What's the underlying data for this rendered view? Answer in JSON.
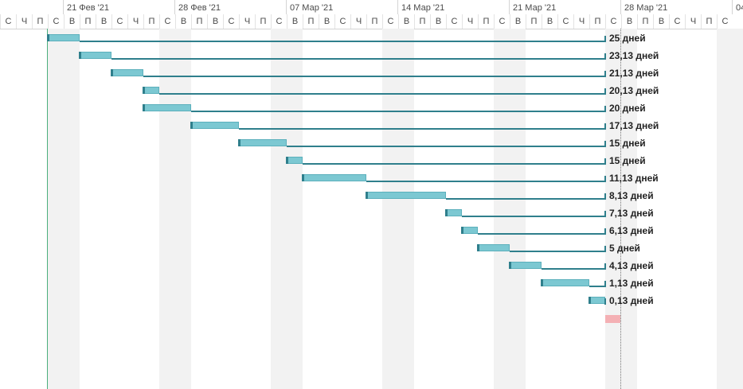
{
  "timescale": {
    "weeks": [
      "21 Фев '21",
      "28 Фев '21",
      "07 Мар '21",
      "14 Мар '21",
      "21 Мар '21",
      "28 Мар '21",
      "04"
    ],
    "days": [
      "С",
      "Ч",
      "П",
      "С",
      "В",
      "П",
      "В",
      "С",
      "Ч",
      "П",
      "С",
      "В",
      "П",
      "В",
      "С",
      "Ч",
      "П",
      "С",
      "В",
      "П",
      "В",
      "С",
      "Ч",
      "П",
      "С",
      "В",
      "П",
      "В",
      "С",
      "Ч",
      "П",
      "С",
      "В",
      "П",
      "В",
      "С",
      "Ч",
      "П",
      "С",
      "В",
      "П",
      "В",
      "С",
      "Ч",
      "П",
      "С"
    ]
  },
  "tasks": [
    {
      "float": "25 дней",
      "start_day": 3,
      "duration": 2
    },
    {
      "float": "23,13 дней",
      "start_day": 5,
      "duration": 2
    },
    {
      "float": "21,13 дней",
      "start_day": 7,
      "duration": 2
    },
    {
      "float": "20,13 дней",
      "start_day": 9,
      "duration": 1
    },
    {
      "float": "20 дней",
      "start_day": 9,
      "duration": 3
    },
    {
      "float": "17,13 дней",
      "start_day": 12,
      "duration": 3
    },
    {
      "float": "15 дней",
      "start_day": 15,
      "duration": 3
    },
    {
      "float": "15 дней",
      "start_day": 18,
      "duration": 1
    },
    {
      "float": "11,13 дней",
      "start_day": 19,
      "duration": 4
    },
    {
      "float": "8,13 дней",
      "start_day": 23,
      "duration": 5
    },
    {
      "float": "7,13 дней",
      "start_day": 28,
      "duration": 1
    },
    {
      "float": "6,13 дней",
      "start_day": 29,
      "duration": 1
    },
    {
      "float": "5 дней",
      "start_day": 30,
      "duration": 2
    },
    {
      "float": "4,13 дней",
      "start_day": 32,
      "duration": 2
    },
    {
      "float": "1,13 дней",
      "start_day": 34,
      "duration": 3
    },
    {
      "float": "0,13 дней",
      "start_day": 37,
      "duration": 1
    }
  ],
  "colors": {
    "task_fill": "#7cc8d2",
    "slack_line": "#2f7f8c",
    "milestone": "#f4b0b4",
    "weekend": "#f2f2f2"
  }
}
